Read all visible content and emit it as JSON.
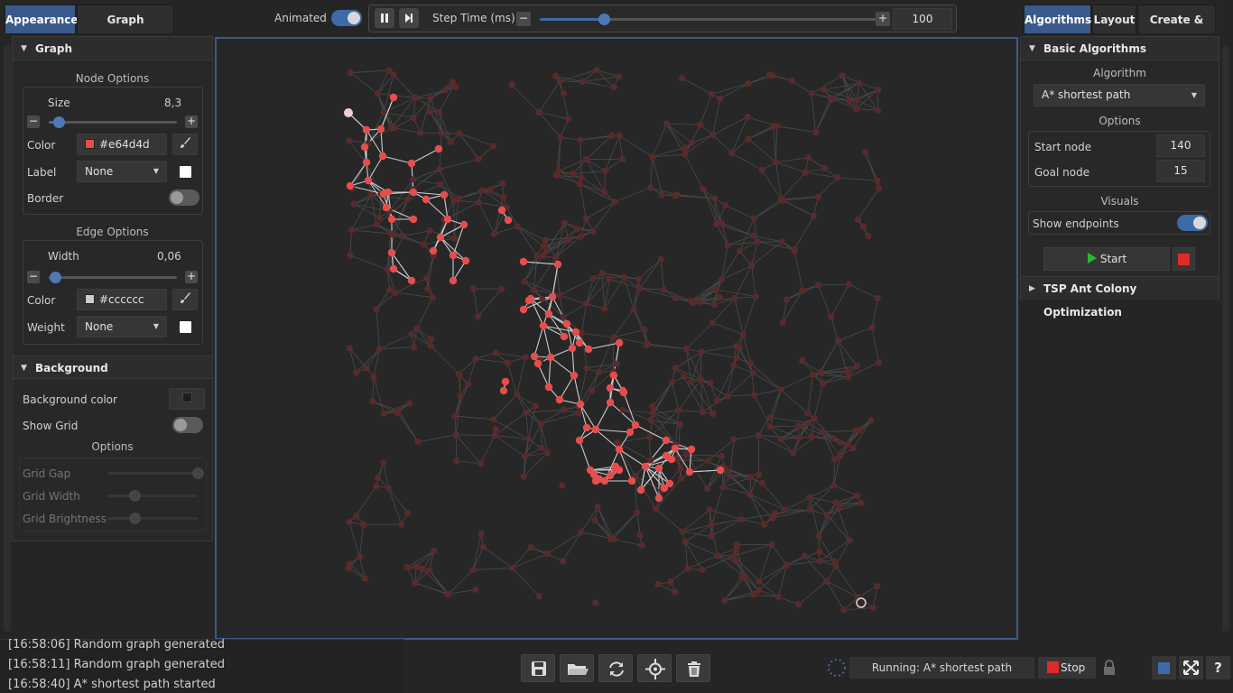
{
  "top": {
    "left_tabs": [
      "Appearance",
      "Graph Properties"
    ],
    "animated_label": "Animated",
    "step_time_label": "Step Time (ms)",
    "step_time_value": "100",
    "step_time_fraction": 0.19,
    "right_tabs": [
      "Algorithms",
      "Layout",
      "Create & Edit"
    ]
  },
  "left": {
    "graph_section": "Graph",
    "node_options": {
      "title": "Node Options",
      "size_label": "Size",
      "size_value": "8,3",
      "size_fraction": 0.08,
      "color_label": "Color",
      "color_value": "#e64d4d",
      "label_label": "Label",
      "label_value": "None",
      "label_checked": false,
      "border_label": "Border",
      "border_on": false
    },
    "edge_options": {
      "title": "Edge Options",
      "width_label": "Width",
      "width_value": "0,06",
      "width_fraction": 0.05,
      "color_label": "Color",
      "color_value": "#cccccc",
      "weight_label": "Weight",
      "weight_value": "None",
      "weight_checked": false
    },
    "background_section": "Background",
    "background_color_label": "Background color",
    "show_grid_label": "Show Grid",
    "show_grid_on": false,
    "grid_options_title": "Options",
    "grid_gap_label": "Grid Gap",
    "grid_width_label": "Grid Width",
    "grid_brightness_label": "Grid Brightness",
    "grid_gap_fraction": 1.0,
    "grid_width_fraction": 0.3,
    "grid_brightness_fraction": 0.3
  },
  "right": {
    "basic_section": "Basic Algorithms",
    "algorithm_title": "Algorithm",
    "algorithm_value": "A* shortest path",
    "options_title": "Options",
    "start_node_label": "Start node",
    "start_node_value": "140",
    "goal_node_label": "Goal node",
    "goal_node_value": "15",
    "visuals_title": "Visuals",
    "show_endpoints_label": "Show endpoints",
    "show_endpoints_on": true,
    "start_button": "Start",
    "tsp_section": "TSP Ant Colony Optimization"
  },
  "log": [
    "[16:58:06] Random graph generated",
    "[16:58:11] Random graph generated",
    "[16:58:40] A* shortest path started"
  ],
  "bottom": {
    "status": "Running: A* shortest path",
    "stop_label": "Stop"
  },
  "colors": {
    "accent": "#3e6aa8",
    "node_active": "#e64d4d",
    "node_inactive": "#5a2a2a",
    "edge_active": "#cccccc",
    "edge_inactive": "#4a4a4a",
    "play_green": "#22bb33",
    "stop_red": "#e02a2a"
  },
  "icons": [
    "save-icon",
    "open-folder-icon",
    "refresh-icon",
    "center-target-icon",
    "trash-icon",
    "spinner-icon",
    "lock-icon",
    "fullscreen-icon",
    "help-icon"
  ]
}
